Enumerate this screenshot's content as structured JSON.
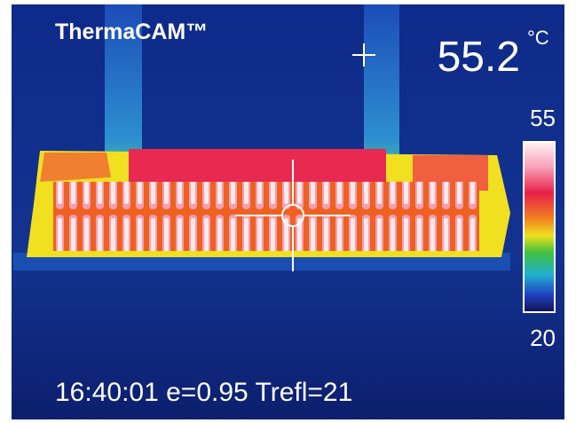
{
  "header": {
    "brand": "ThermaCAM™"
  },
  "reading": {
    "value": 55.2,
    "unit": "°C"
  },
  "scale": {
    "max": 55,
    "min": 20
  },
  "footer": {
    "status": "16:40:01 e=0.95 Trefl=21"
  }
}
